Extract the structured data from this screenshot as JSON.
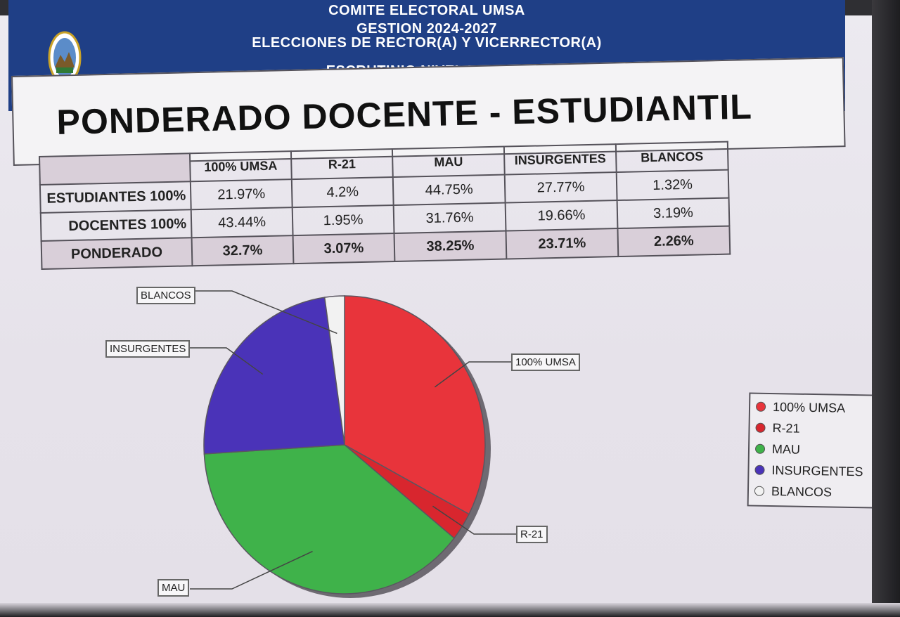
{
  "header": {
    "line1": "COMITE ELECTORAL  UMSA",
    "line2": "GESTION 2024-2027",
    "line3": "ELECCIONES DE RECTOR(A) Y VICERRECTOR(A)",
    "line4": "ESCRUTINIO NIVEL U.M.S.A."
  },
  "title": "PONDERADO DOCENTE - ESTUDIANTIL",
  "table": {
    "columns": [
      "100% UMSA",
      "R-21",
      "MAU",
      "INSURGENTES",
      "BLANCOS"
    ],
    "rows": [
      {
        "label": "ESTUDIANTES 100%",
        "values": [
          "21.97%",
          "4.2%",
          "44.75%",
          "27.77%",
          "1.32%"
        ]
      },
      {
        "label": "DOCENTES 100%",
        "values": [
          "43.44%",
          "1.95%",
          "31.76%",
          "19.66%",
          "3.19%"
        ]
      },
      {
        "label": "PONDERADO",
        "values": [
          "32.7%",
          "3.07%",
          "38.25%",
          "23.71%",
          "2.26%"
        ]
      }
    ]
  },
  "chart_data": {
    "type": "pie",
    "categories": [
      "100% UMSA",
      "R-21",
      "MAU",
      "INSURGENTES",
      "BLANCOS"
    ],
    "values": [
      32.7,
      3.07,
      38.25,
      23.71,
      2.26
    ],
    "colors": [
      "#e8343b",
      "#d8262e",
      "#3fb24a",
      "#4a33b8",
      "#f2f2f2"
    ],
    "legend_position": "right",
    "legend": [
      "100% UMSA",
      "R-21",
      "MAU",
      "INSURGENTES",
      "BLANCOS"
    ]
  }
}
